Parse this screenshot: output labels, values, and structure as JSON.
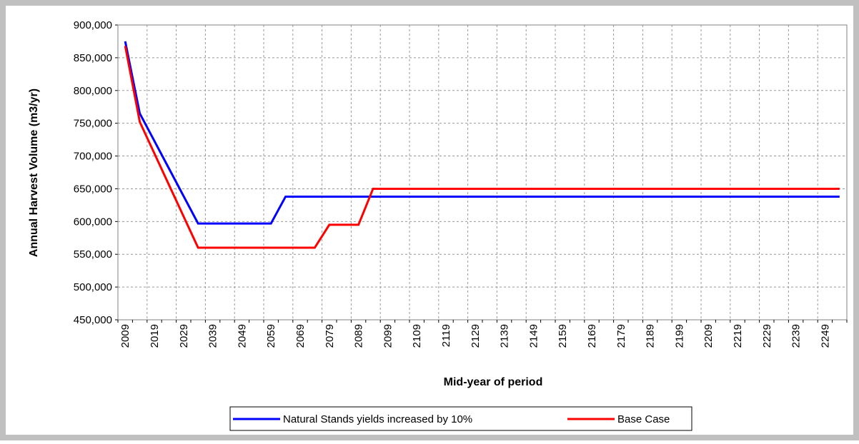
{
  "chart_data": {
    "type": "line",
    "x_label": "Mid-year of period",
    "y_label": "Annual Harvest Volume (m3/yr)",
    "categories": [
      "2009",
      null,
      "2019",
      null,
      "2029",
      null,
      "2039",
      null,
      "2049",
      null,
      "2059",
      null,
      "2069",
      null,
      "2079",
      null,
      "2089",
      null,
      "2099",
      null,
      "2109",
      null,
      "2119",
      null,
      "2129",
      null,
      "2139",
      null,
      "2149",
      null,
      "2159",
      null,
      "2169",
      null,
      "2179",
      null,
      "2189",
      null,
      "2199",
      null,
      "2209",
      null,
      "2219",
      null,
      "2229",
      null,
      "2239",
      null,
      "2249",
      null
    ],
    "series": [
      {
        "name": "Natural Stands yields increased by 10%",
        "color": "#0000ff",
        "values": [
          875000,
          765000,
          723000,
          681000,
          639000,
          597000,
          597000,
          597000,
          597000,
          597000,
          597000,
          638000,
          638000,
          638000,
          638000,
          638000,
          638000,
          638000,
          638000,
          638000,
          638000,
          638000,
          638000,
          638000,
          638000,
          638000,
          638000,
          638000,
          638000,
          638000,
          638000,
          638000,
          638000,
          638000,
          638000,
          638000,
          638000,
          638000,
          638000,
          638000,
          638000,
          638000,
          638000,
          638000,
          638000,
          638000,
          638000,
          638000,
          638000,
          638000
        ]
      },
      {
        "name": "Base Case",
        "color": "#ff0000",
        "values": [
          868000,
          752000,
          704000,
          656000,
          608000,
          560000,
          560000,
          560000,
          560000,
          560000,
          560000,
          560000,
          560000,
          560000,
          595000,
          595000,
          595000,
          650000,
          650000,
          650000,
          650000,
          650000,
          650000,
          650000,
          650000,
          650000,
          650000,
          650000,
          650000,
          650000,
          650000,
          650000,
          650000,
          650000,
          650000,
          650000,
          650000,
          650000,
          650000,
          650000,
          650000,
          650000,
          650000,
          650000,
          650000,
          650000,
          650000,
          650000,
          650000,
          650000
        ]
      }
    ],
    "ylim": [
      450000,
      900000
    ],
    "yticks": [
      {
        "value": 450000,
        "label": "450,000"
      },
      {
        "value": 500000,
        "label": "500,000"
      },
      {
        "value": 550000,
        "label": "550,000"
      },
      {
        "value": 600000,
        "label": "600,000"
      },
      {
        "value": 650000,
        "label": "650,000"
      },
      {
        "value": 700000,
        "label": "700,000"
      },
      {
        "value": 750000,
        "label": "750,000"
      },
      {
        "value": 800000,
        "label": "800,000"
      },
      {
        "value": 850000,
        "label": "850,000"
      },
      {
        "value": 900000,
        "label": "900,000"
      }
    ],
    "grid": true
  }
}
